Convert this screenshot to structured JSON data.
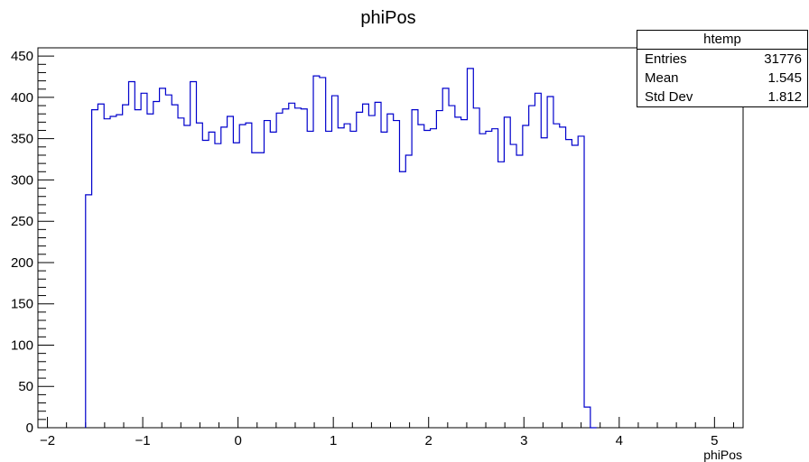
{
  "chart_data": {
    "type": "bar",
    "title": "phiPos",
    "xlabel": "phiPos",
    "ylabel": "",
    "xlim": [
      -2.1,
      5.3
    ],
    "ylim": [
      0,
      460
    ],
    "bin_edges_range": [
      -1.6,
      4.8
    ],
    "bin_width": 0.0646,
    "values": [
      282,
      385,
      392,
      374,
      377,
      379,
      391,
      419,
      385,
      405,
      380,
      395,
      411,
      403,
      391,
      375,
      366,
      419,
      369,
      348,
      358,
      344,
      364,
      377,
      345,
      367,
      369,
      333,
      333,
      372,
      358,
      381,
      386,
      393,
      387,
      386,
      359,
      426,
      424,
      359,
      402,
      363,
      368,
      359,
      382,
      392,
      378,
      394,
      358,
      380,
      372,
      310,
      330,
      385,
      367,
      360,
      362,
      384,
      411,
      390,
      376,
      373,
      435,
      387,
      356,
      359,
      362,
      322,
      376,
      343,
      330,
      366,
      390,
      405,
      351,
      401,
      368,
      364,
      349,
      342,
      353,
      25,
      0
    ],
    "xticks": [
      "−2",
      "−1",
      "0",
      "1",
      "2",
      "3",
      "4",
      "5"
    ],
    "yticks": [
      "0",
      "50",
      "100",
      "150",
      "200",
      "250",
      "300",
      "350",
      "400",
      "450"
    ],
    "line_color": "#0000cc",
    "grid": false,
    "legend": "none"
  },
  "stats": {
    "name": "htemp",
    "rows": [
      {
        "label": "Entries",
        "value": "31776"
      },
      {
        "label": "Mean",
        "value": "1.545"
      },
      {
        "label": "Std Dev",
        "value": "1.812"
      }
    ]
  }
}
